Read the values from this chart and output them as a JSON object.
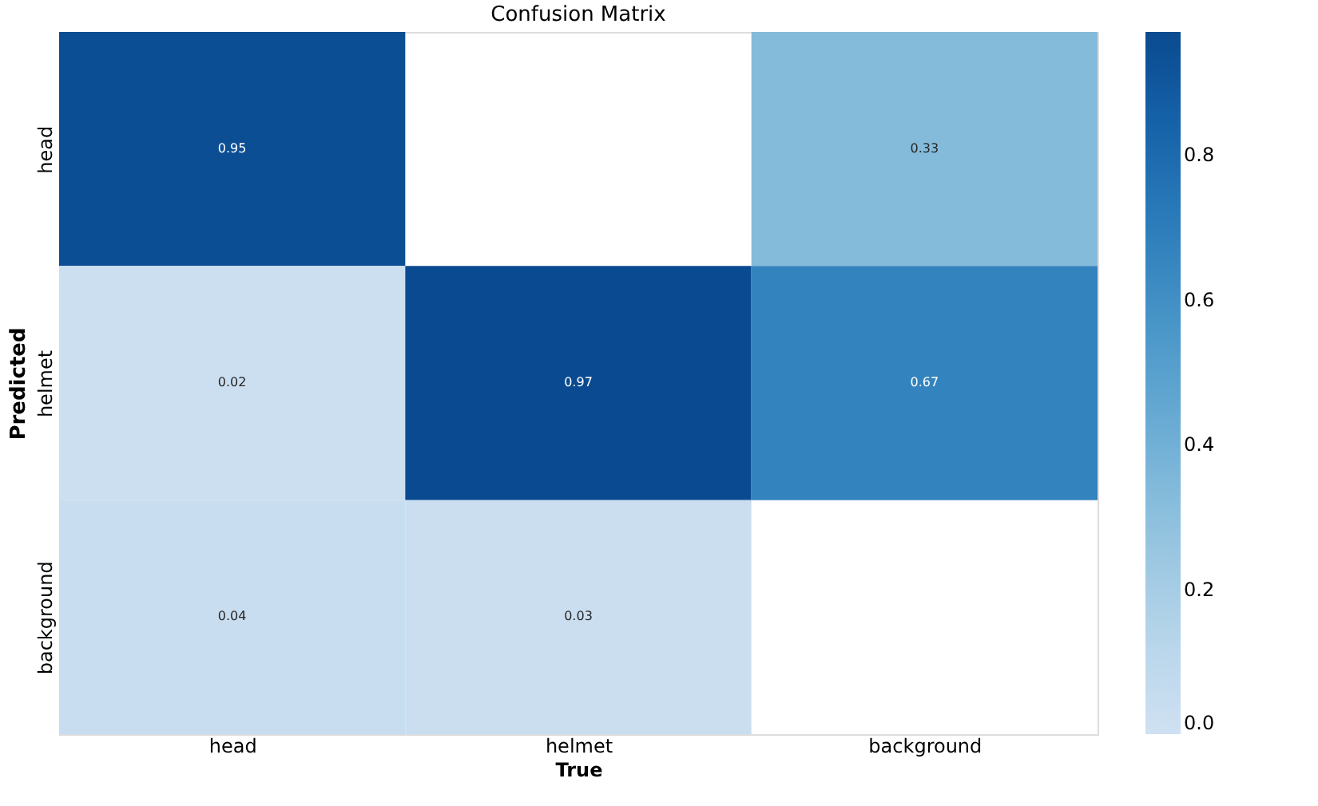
{
  "chart_data": {
    "type": "heatmap",
    "title": "Confusion Matrix",
    "xlabel": "True",
    "ylabel": "Predicted",
    "categories": [
      "head",
      "helmet",
      "background"
    ],
    "y_categories": [
      "head",
      "helmet",
      "background"
    ],
    "cells": [
      [
        0.95,
        null,
        0.33
      ],
      [
        0.02,
        0.97,
        0.67
      ],
      [
        0.04,
        0.03,
        null
      ]
    ],
    "clim": [
      0,
      0.97
    ],
    "cticks": [
      {
        "value": 0,
        "label": "0.0"
      },
      0.2,
      0.4,
      0.6,
      0.8
    ],
    "data_labels": true,
    "grid": false
  }
}
